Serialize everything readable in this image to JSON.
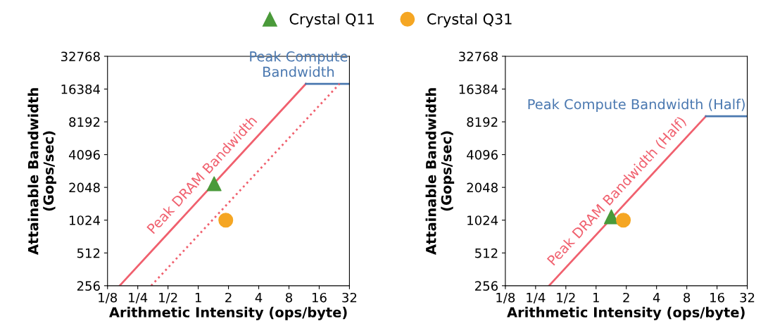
{
  "chart_data": [
    {
      "type": "line",
      "xlabel": "Arithmetic Intensity (ops/byte)",
      "ylabel": "Attainable Bandwidth\n(Gops/sec)",
      "log": "xy",
      "grid": false,
      "legend": "top",
      "xlim": [
        0.125,
        32
      ],
      "ylim": [
        256,
        32768
      ],
      "xticks": [
        {
          "value": 0.125,
          "label": "1/8"
        },
        {
          "value": 0.25,
          "label": "1/4"
        },
        {
          "value": 0.5,
          "label": "1/2"
        },
        1,
        2,
        4,
        8,
        16,
        32
      ],
      "yticks": [
        256,
        512,
        1024,
        2048,
        4096,
        8192,
        16384,
        32768
      ],
      "series": [
        {
          "color": "#f0606e",
          "line_style": "solid",
          "x": [
            0.165,
            11.8
          ],
          "values": [
            256,
            18300
          ]
        },
        {
          "color": "#4a78b0",
          "line_style": "solid",
          "x": [
            11.8,
            32
          ],
          "values": [
            18300,
            18300
          ]
        },
        {
          "color": "#f0606e",
          "line_style": "dotted",
          "x": [
            0.34,
            25.5
          ],
          "values": [
            256,
            18300
          ]
        },
        {
          "type": "scatter",
          "name": "Crystal Q11",
          "color": "#4a9a3a",
          "marker": "triangle",
          "x": [
            1.44
          ],
          "values": [
            2212
          ]
        },
        {
          "type": "scatter",
          "name": "Crystal Q31",
          "color": "#f5a623",
          "marker": "circle",
          "x": [
            1.88
          ],
          "values": [
            1024
          ]
        }
      ],
      "annotations": [
        "Peak DRAM Bandwidth",
        "Peak Compute\nBandwidth"
      ]
    },
    {
      "type": "line",
      "xlabel": "Arithmetic Intensity (ops/byte)",
      "ylabel": "Attainable Bandwidth\n(Gops/sec)",
      "log": "xy",
      "grid": false,
      "xlim": [
        0.125,
        32
      ],
      "ylim": [
        256,
        32768
      ],
      "xticks": [
        {
          "value": 0.125,
          "label": "1/8"
        },
        {
          "value": 0.25,
          "label": "1/4"
        },
        {
          "value": 0.5,
          "label": "1/2"
        },
        1,
        2,
        4,
        8,
        16,
        32
      ],
      "yticks": [
        256,
        512,
        1024,
        2048,
        4096,
        8192,
        16384,
        32768
      ],
      "series": [
        {
          "color": "#f0606e",
          "line_style": "solid",
          "x": [
            0.34,
            12.4
          ],
          "values": [
            256,
            9220
          ]
        },
        {
          "color": "#4a78b0",
          "line_style": "solid",
          "x": [
            12.4,
            32
          ],
          "values": [
            9220,
            9220
          ]
        },
        {
          "type": "scatter",
          "name": "Crystal Q11",
          "color": "#4a9a3a",
          "marker": "triangle",
          "x": [
            1.42
          ],
          "values": [
            1100
          ]
        },
        {
          "type": "scatter",
          "name": "Crystal Q31",
          "color": "#f5a623",
          "marker": "circle",
          "x": [
            1.87
          ],
          "values": [
            1024
          ]
        }
      ],
      "annotations": [
        "Peak DRAM Bandwidth (Half)",
        "Peak Compute Bandwidth (Half)"
      ]
    }
  ]
}
